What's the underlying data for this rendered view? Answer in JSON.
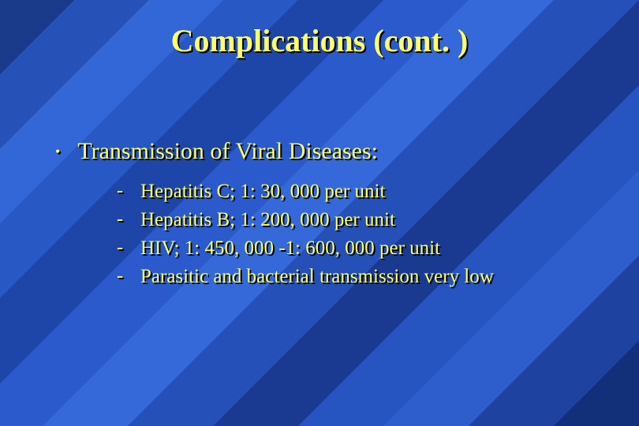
{
  "colors": {
    "title_color": "#ffff66",
    "body_color": "#ffff66",
    "shadow_color": "#000000"
  },
  "typography": {
    "font_family": "Times New Roman",
    "title_fontsize": 40,
    "title_weight": "bold",
    "level1_fontsize": 30,
    "level2_fontsize": 25
  },
  "title": "Complications (cont. )",
  "level1": {
    "bullet": "•",
    "text": "Transmission of Viral Diseases:"
  },
  "level2": {
    "bullet": "-",
    "items": [
      "Hepatitis C; 1: 30, 000 per unit",
      "Hepatitis B; 1: 200, 000 per unit",
      "HIV;  1: 450, 000 -1: 600, 000 per unit",
      "Parasitic and bacterial transmission very low"
    ]
  }
}
